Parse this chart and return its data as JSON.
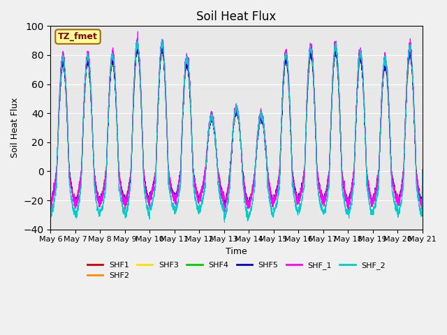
{
  "title": "Soil Heat Flux",
  "xlabel": "Time",
  "ylabel": "Soil Heat Flux",
  "ylim": [
    -40,
    100
  ],
  "yticks": [
    -40,
    -20,
    0,
    20,
    40,
    60,
    80,
    100
  ],
  "series_colors": {
    "SHF1": "#cc0000",
    "SHF2": "#ff8800",
    "SHF3": "#ffdd00",
    "SHF4": "#00cc00",
    "SHF5": "#0000cc",
    "SHF_1": "#ff00ff",
    "SHF_2": "#00cccc"
  },
  "x_tick_labels": [
    "May 6",
    "May 7",
    "May 8",
    "May 9",
    "May 10",
    "May 11",
    "May 12",
    "May 13",
    "May 14",
    "May 15",
    "May 16",
    "May 17",
    "May 18",
    "May 19",
    "May 20",
    "May 21"
  ],
  "annotation_text": "TZ_fmet",
  "annotation_bg": "#ffff99",
  "annotation_border": "#aa6600",
  "n_points": 3600,
  "n_days": 15
}
